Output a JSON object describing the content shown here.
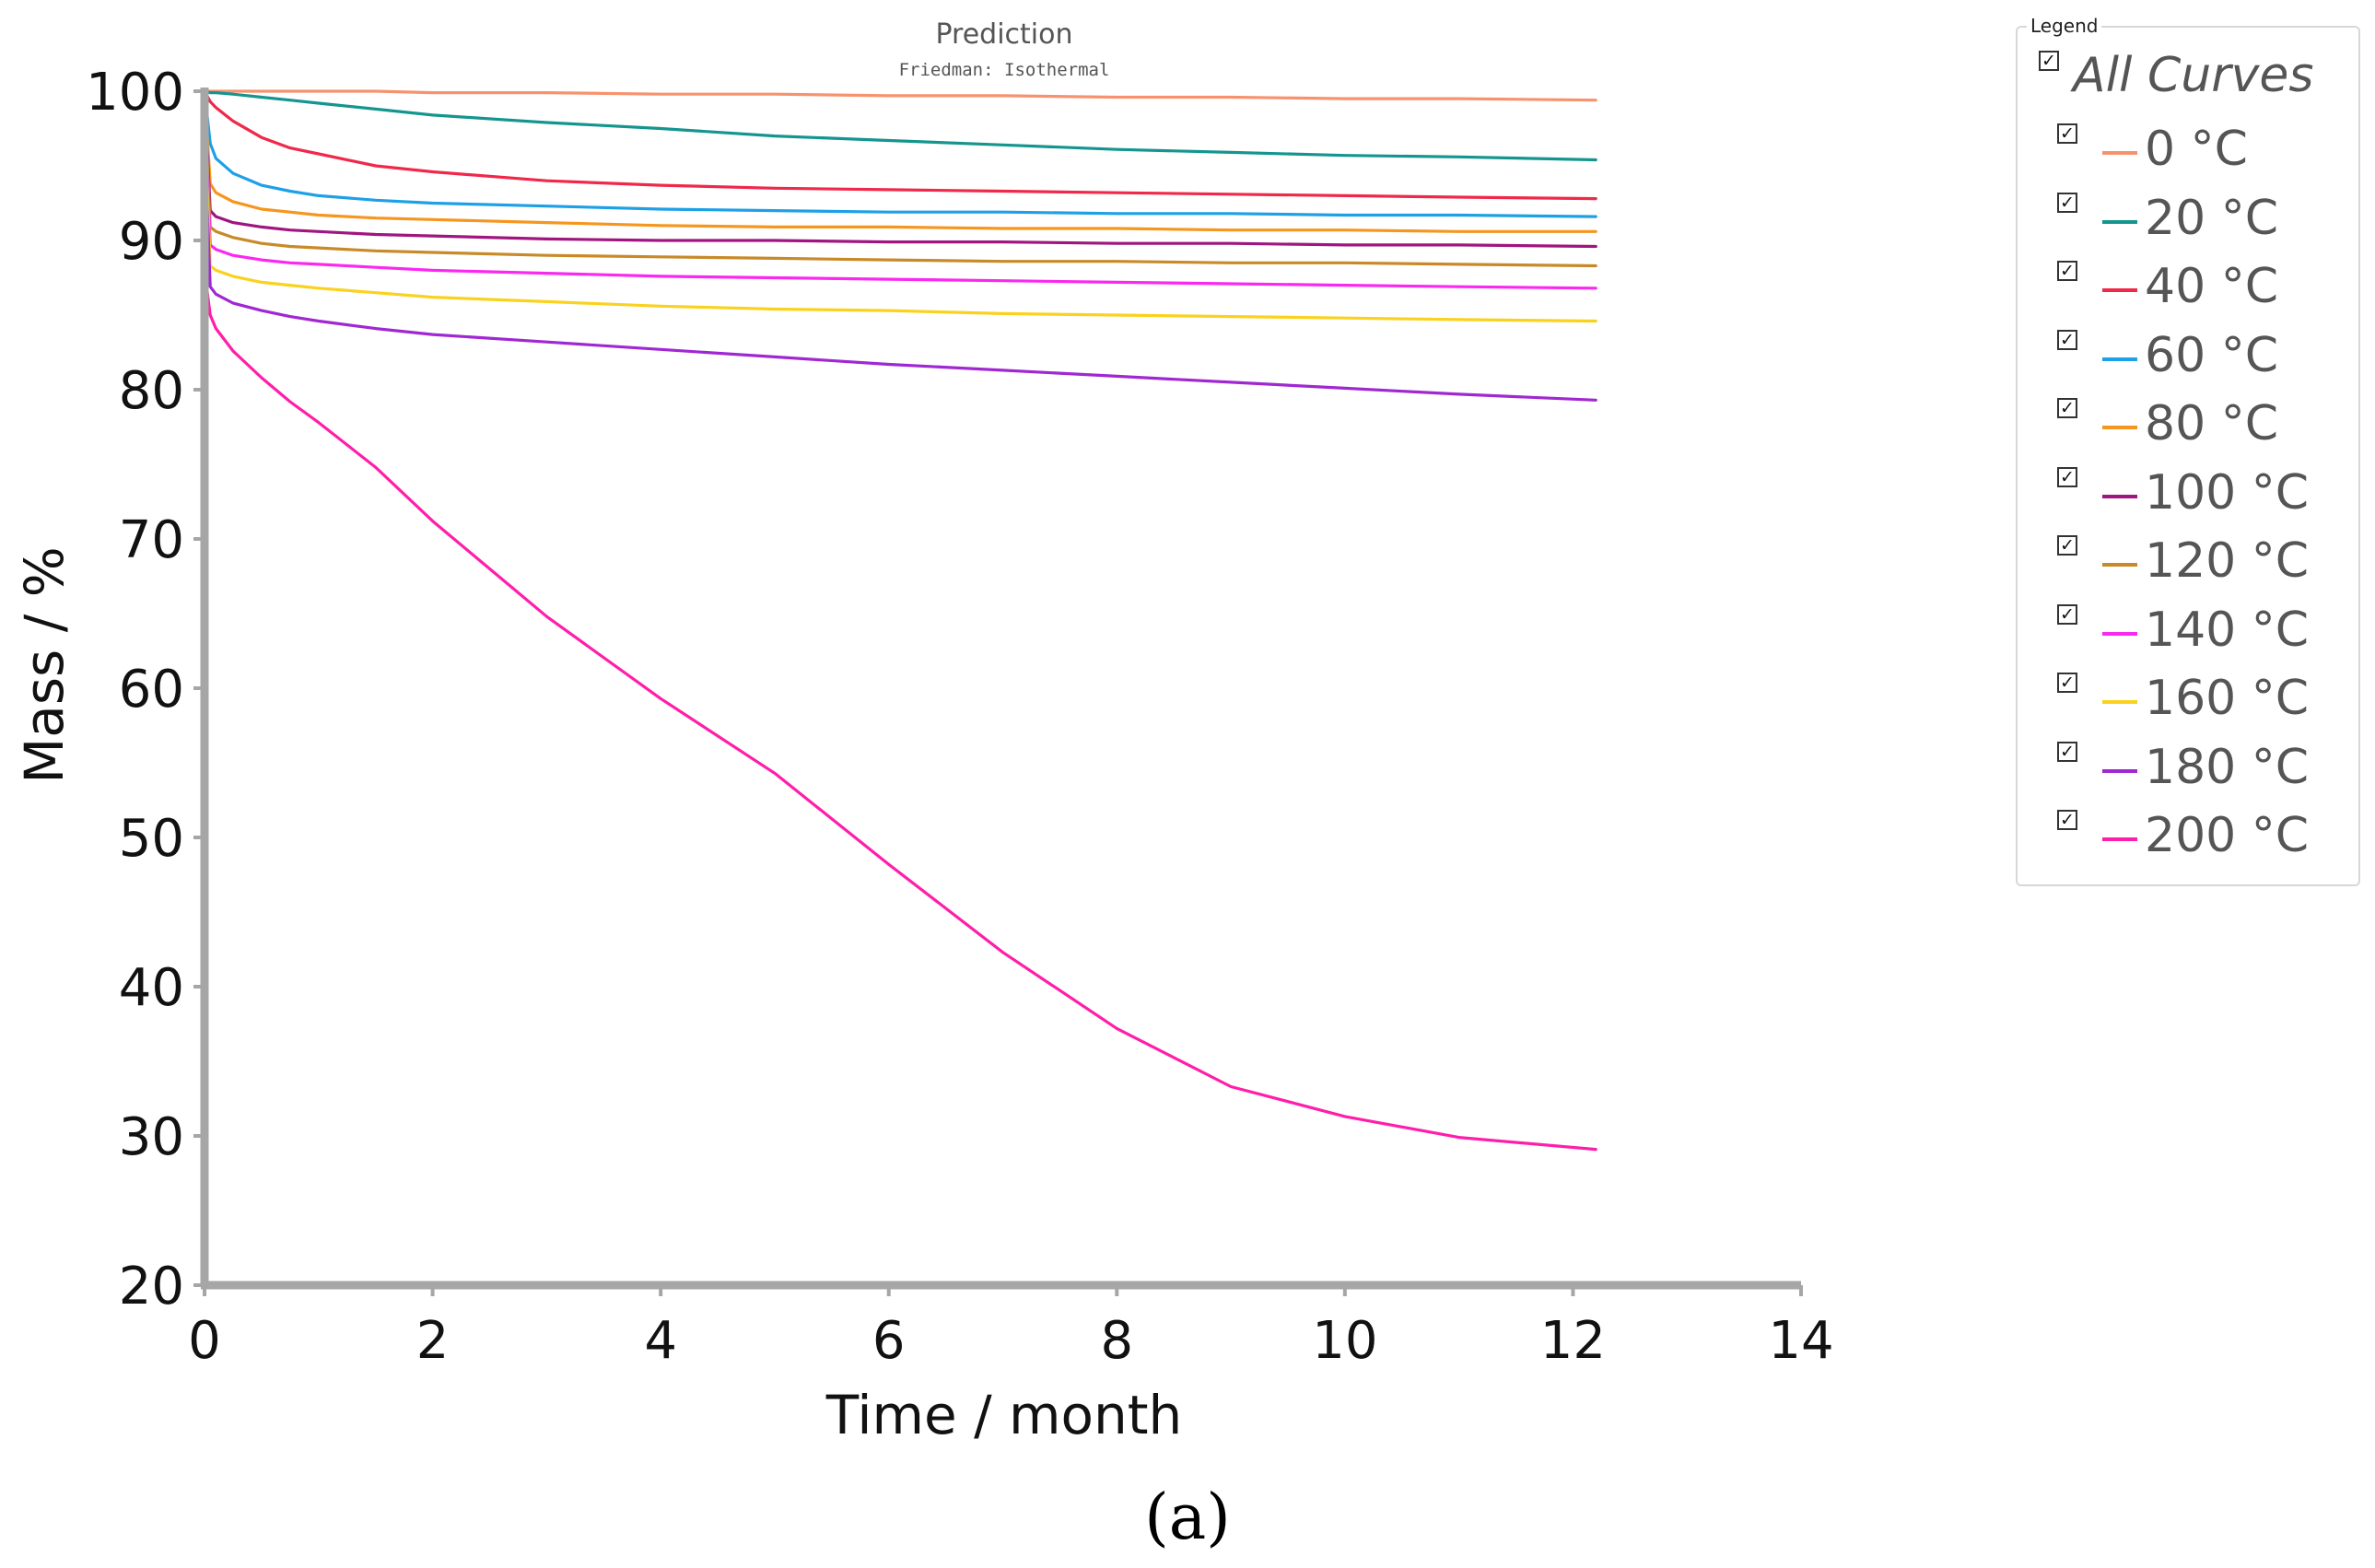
{
  "chart_data": {
    "type": "line",
    "title": "Prediction",
    "subtitle": "Friedman: Isothermal",
    "xlabel": "Time / month",
    "ylabel": "Mass / %",
    "xlim": [
      0,
      14
    ],
    "ylim": [
      20,
      100
    ],
    "xticks": [
      0,
      2,
      4,
      6,
      8,
      10,
      12,
      14
    ],
    "yticks": [
      20,
      30,
      40,
      50,
      60,
      70,
      80,
      90,
      100
    ],
    "grid": false,
    "legend_position": "right",
    "x": [
      0,
      0.05,
      0.1,
      0.25,
      0.5,
      0.75,
      1,
      1.5,
      2,
      3,
      4,
      5,
      6,
      7,
      8,
      9,
      10,
      11,
      12.2
    ],
    "series": [
      {
        "name": "0 °C",
        "color": "#f7926e",
        "values": [
          100,
          100,
          100,
          100,
          100,
          100,
          100,
          100,
          99.9,
          99.9,
          99.8,
          99.8,
          99.7,
          99.7,
          99.6,
          99.6,
          99.5,
          99.5,
          99.4
        ]
      },
      {
        "name": "20 °C",
        "color": "#14958f",
        "values": [
          100,
          99.9,
          99.9,
          99.8,
          99.6,
          99.4,
          99.2,
          98.8,
          98.4,
          97.9,
          97.5,
          97.0,
          96.7,
          96.4,
          96.1,
          95.9,
          95.7,
          95.6,
          95.4
        ]
      },
      {
        "name": "40 °C",
        "color": "#f0284a",
        "values": [
          100,
          99.3,
          98.9,
          98.0,
          96.9,
          96.2,
          95.8,
          95.0,
          94.6,
          94.0,
          93.7,
          93.5,
          93.4,
          93.3,
          93.2,
          93.1,
          93.0,
          92.9,
          92.8
        ]
      },
      {
        "name": "60 °C",
        "color": "#1ea0e6",
        "values": [
          100,
          96.5,
          95.5,
          94.5,
          93.7,
          93.3,
          93.0,
          92.7,
          92.5,
          92.3,
          92.1,
          92.0,
          91.9,
          91.9,
          91.8,
          91.8,
          91.7,
          91.7,
          91.6
        ]
      },
      {
        "name": "80 °C",
        "color": "#f5961e",
        "values": [
          100,
          93.8,
          93.2,
          92.6,
          92.1,
          91.9,
          91.7,
          91.5,
          91.4,
          91.2,
          91.0,
          90.9,
          90.9,
          90.8,
          90.8,
          90.7,
          90.7,
          90.6,
          90.6
        ]
      },
      {
        "name": "100 °C",
        "color": "#a0157f",
        "values": [
          100,
          92.0,
          91.6,
          91.2,
          90.9,
          90.7,
          90.6,
          90.4,
          90.3,
          90.1,
          90.0,
          90.0,
          89.9,
          89.9,
          89.8,
          89.8,
          89.7,
          89.7,
          89.6
        ]
      },
      {
        "name": "120 °C",
        "color": "#c88a28",
        "values": [
          99.5,
          90.9,
          90.6,
          90.2,
          89.8,
          89.6,
          89.5,
          89.3,
          89.2,
          89.0,
          88.9,
          88.8,
          88.7,
          88.6,
          88.6,
          88.5,
          88.5,
          88.4,
          88.3
        ]
      },
      {
        "name": "140 °C",
        "color": "#fa28f0",
        "values": [
          99,
          89.7,
          89.4,
          89.0,
          88.7,
          88.5,
          88.4,
          88.2,
          88.0,
          87.8,
          87.6,
          87.5,
          87.4,
          87.3,
          87.2,
          87.1,
          87.0,
          86.9,
          86.8
        ]
      },
      {
        "name": "160 °C",
        "color": "#fad21e",
        "values": [
          98.5,
          88.3,
          88.0,
          87.6,
          87.2,
          87.0,
          86.8,
          86.5,
          86.2,
          85.9,
          85.6,
          85.4,
          85.3,
          85.1,
          85.0,
          84.9,
          84.8,
          84.7,
          84.6
        ]
      },
      {
        "name": "180 °C",
        "color": "#a028d2",
        "values": [
          97,
          86.9,
          86.4,
          85.8,
          85.3,
          84.9,
          84.6,
          84.1,
          83.7,
          83.2,
          82.7,
          82.2,
          81.7,
          81.3,
          80.9,
          80.5,
          80.1,
          79.7,
          79.3
        ]
      },
      {
        "name": "200 °C",
        "color": "#ff1eaa",
        "values": [
          88,
          85.0,
          84.1,
          82.6,
          80.8,
          79.2,
          77.8,
          74.8,
          71.2,
          64.8,
          59.3,
          54.3,
          48.2,
          42.3,
          37.2,
          33.3,
          31.3,
          29.9,
          29.1
        ]
      }
    ]
  },
  "legend": {
    "title": "Legend",
    "all_label": "All Curves",
    "check_glyph": "✓"
  },
  "caption": "(a)"
}
